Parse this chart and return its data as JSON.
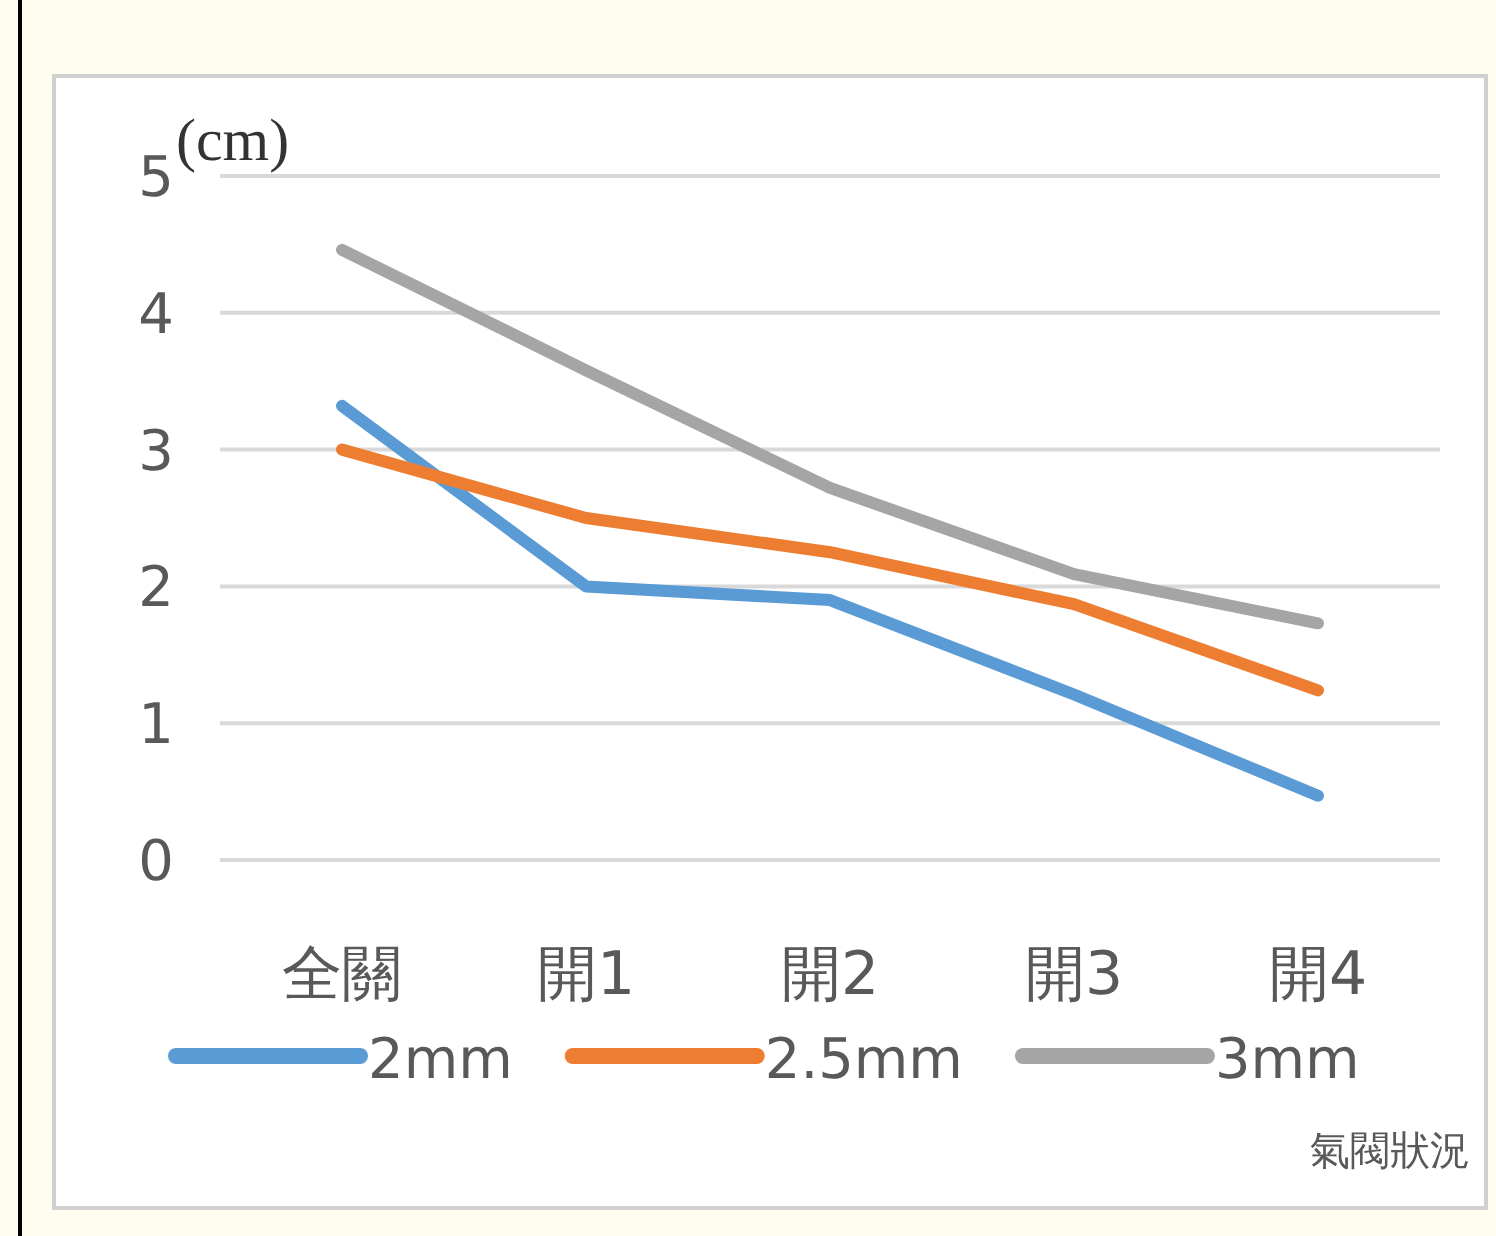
{
  "chart_data": {
    "type": "line",
    "ylabel": "(cm)",
    "xlabel": "氣閥狀況",
    "categories": [
      "全關",
      "開1",
      "開2",
      "開3",
      "開4"
    ],
    "series": [
      {
        "name": "2mm",
        "color": "#5b9bd5",
        "values": [
          3.32,
          2.0,
          1.9,
          1.21,
          0.47
        ]
      },
      {
        "name": "2.5mm",
        "color": "#ed7d31",
        "values": [
          3.0,
          2.5,
          2.25,
          1.87,
          1.24
        ]
      },
      {
        "name": "3mm",
        "color": "#a5a5a5",
        "values": [
          4.46,
          3.58,
          2.72,
          2.09,
          1.73
        ]
      }
    ],
    "ylim": [
      0,
      5
    ],
    "yticks": [
      0,
      1,
      2,
      3,
      4,
      5
    ],
    "grid": "y",
    "legend": "bottom",
    "marker": "none",
    "line_style": "solid"
  }
}
